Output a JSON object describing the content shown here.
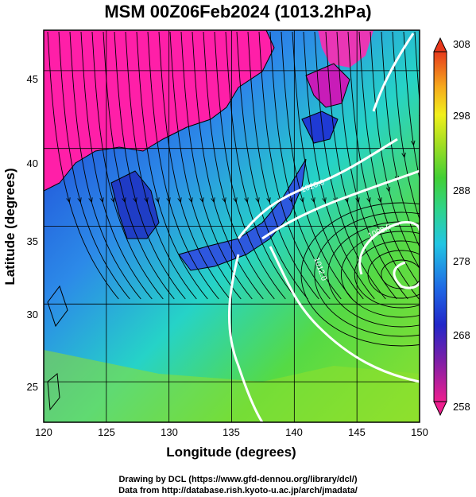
{
  "title": "MSM 00Z06Feb2024 (1013.2hPa)",
  "footer": {
    "line1": "Drawing by DCL (https://www.gfd-dennou.org/library/dcl/)",
    "line2": "Data from http://database.rish.kyoto-u.ac.jp/arch/jmadata/"
  },
  "map": {
    "xlabel": "Longitude (degrees)",
    "ylabel": "Latitude  (degrees)",
    "lon_range": [
      120,
      150
    ],
    "lat_range": [
      22.4,
      47.6
    ],
    "lon_ticks": [
      "120",
      "125",
      "130",
      "135",
      "140",
      "145",
      "150"
    ],
    "lat_ticks": [
      "25",
      "30",
      "35",
      "40",
      "45"
    ],
    "contour_labels": [
      "1020.0",
      "1012.0",
      "1008.0"
    ]
  },
  "colorbar": {
    "ticks": [
      "308",
      "298",
      "288",
      "278",
      "268",
      "258"
    ],
    "range": [
      258,
      308
    ],
    "colors": [
      "#e8208c",
      "#7b1fa2",
      "#2a2cc8",
      "#1e6de8",
      "#23c7e0",
      "#33d48a",
      "#45d236",
      "#a8e024",
      "#f2f21c",
      "#f7b21c",
      "#f47a1a",
      "#e8381c"
    ]
  },
  "colors": {
    "land_cold": "#ff1fa8",
    "ocean_warm": "#5bd93a",
    "contour": "#ffffff",
    "streamline": "#000000"
  }
}
